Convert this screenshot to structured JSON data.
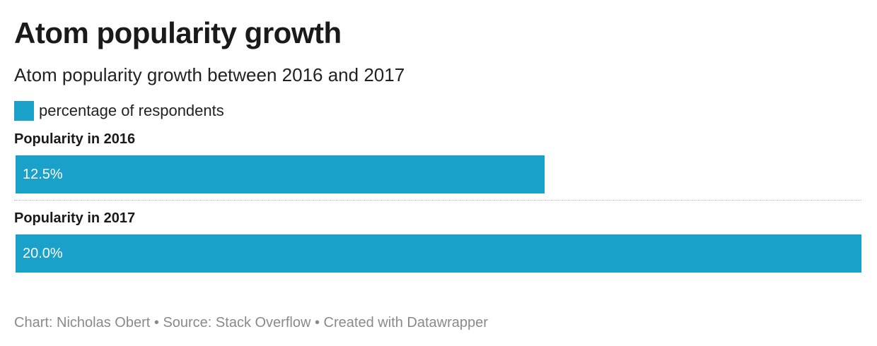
{
  "chart_data": {
    "type": "bar",
    "orientation": "horizontal",
    "title": "Atom popularity growth",
    "subtitle": "Atom popularity growth between 2016 and 2017",
    "categories": [
      "Popularity in 2016",
      "Popularity in 2017"
    ],
    "series": [
      {
        "name": "percentage of respondents",
        "values": [
          12.5,
          20.0
        ],
        "labels": [
          "12.5%",
          "20.0%"
        ],
        "color": "#1aa1c9"
      }
    ],
    "xlim": [
      0,
      20.0
    ],
    "grid": false,
    "legend_position": "top-left"
  },
  "footer": {
    "chart_credit": "Chart: Nicholas Obert",
    "separator": "•",
    "source": "Source: Stack Overflow",
    "created_with": "Created with Datawrapper"
  }
}
